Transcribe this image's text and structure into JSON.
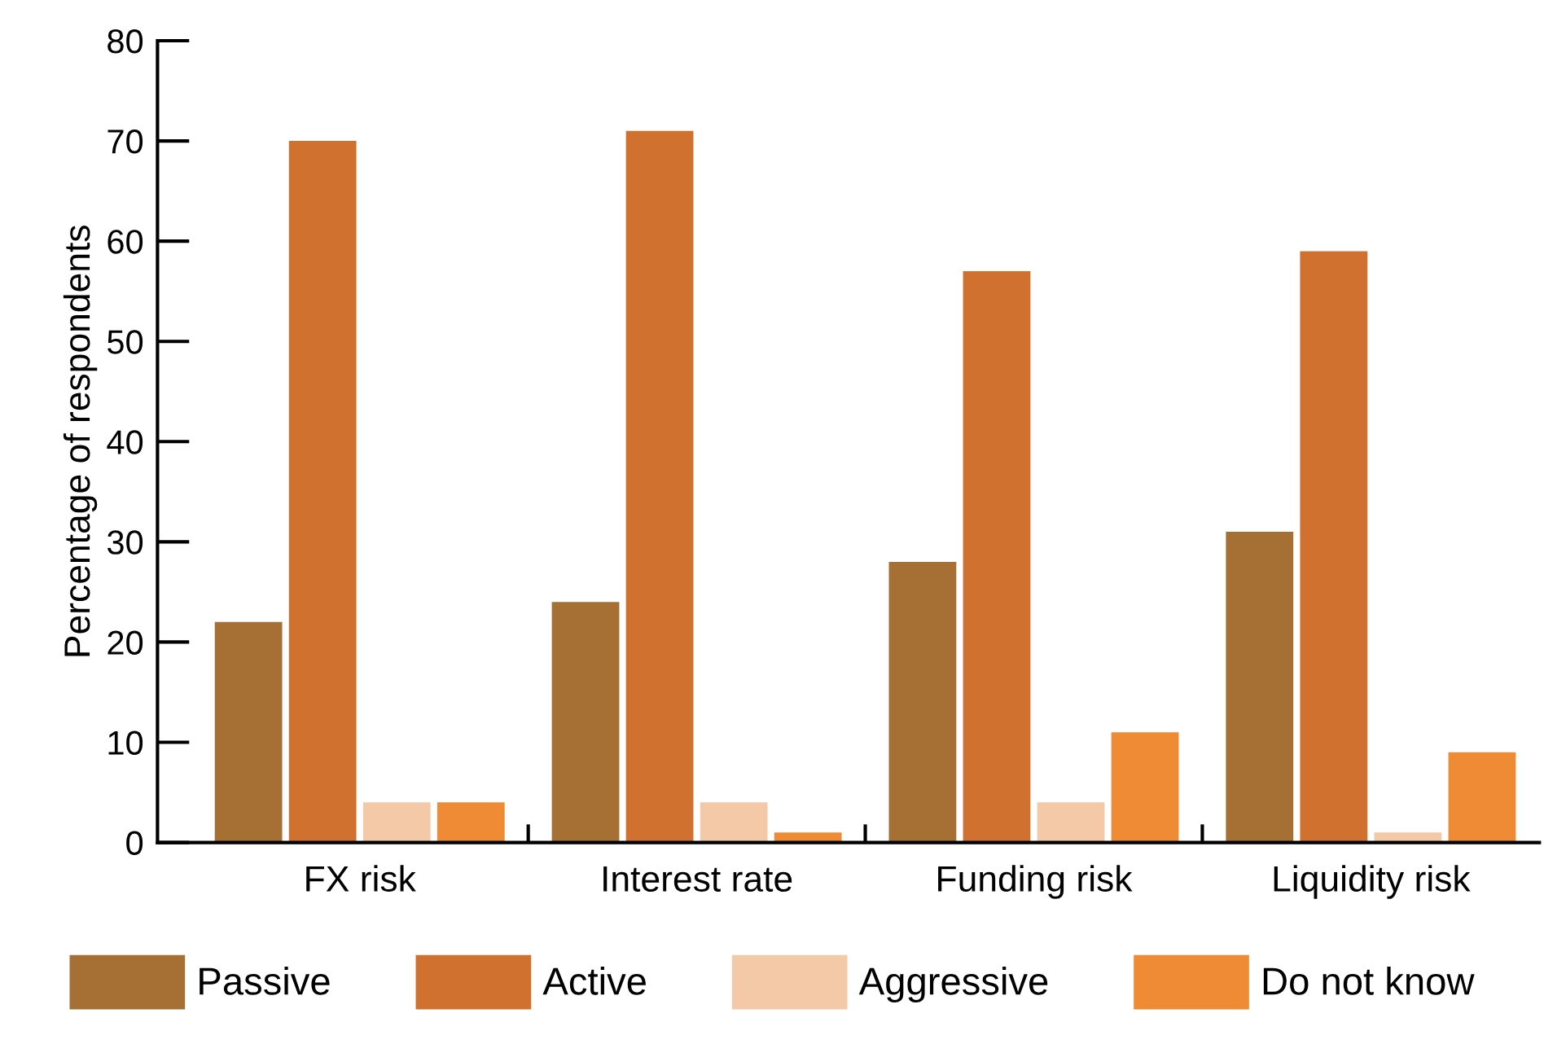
{
  "chart_data": {
    "type": "bar",
    "ylabel": "Percentage of respondents",
    "categories": [
      "FX risk",
      "Interest rate",
      "Funding risk",
      "Liquidity risk"
    ],
    "series": [
      {
        "name": "Passive",
        "color": "#a66f33",
        "values": [
          22,
          24,
          28,
          31
        ]
      },
      {
        "name": "Active",
        "color": "#d0712f",
        "values": [
          70,
          71,
          57,
          59
        ]
      },
      {
        "name": "Aggressive",
        "color": "#f4c9a7",
        "values": [
          4,
          4,
          4,
          1
        ]
      },
      {
        "name": "Do not know",
        "color": "#ef8b34",
        "values": [
          4,
          1,
          11,
          9
        ]
      }
    ],
    "ylim": [
      0,
      80
    ],
    "yticks": [
      0,
      10,
      20,
      30,
      40,
      50,
      60,
      70,
      80
    ],
    "grid": false,
    "legend": "bottom"
  }
}
